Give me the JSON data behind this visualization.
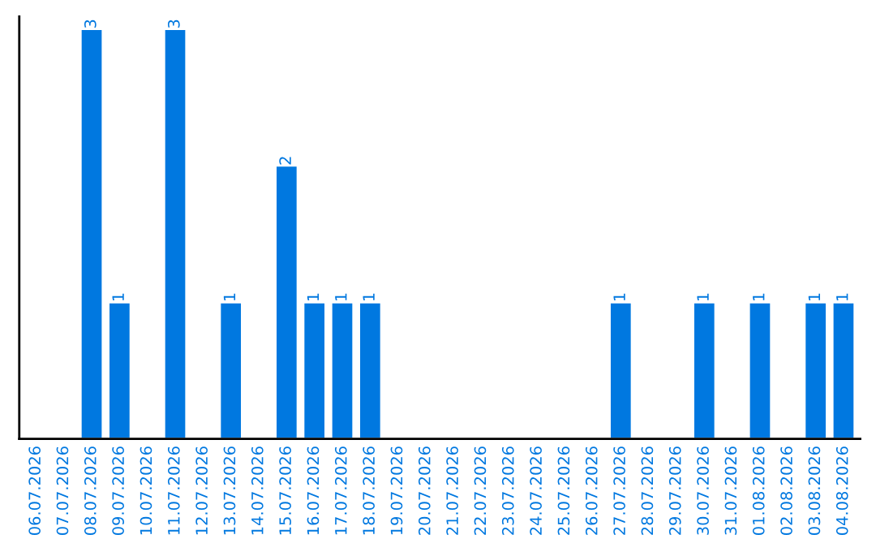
{
  "chart_data": {
    "type": "bar",
    "categories": [
      "06.07.2026",
      "07.07.2026",
      "08.07.2026",
      "09.07.2026",
      "10.07.2026",
      "11.07.2026",
      "12.07.2026",
      "13.07.2026",
      "14.07.2026",
      "15.07.2026",
      "16.07.2026",
      "17.07.2026",
      "18.07.2026",
      "19.07.2026",
      "20.07.2026",
      "21.07.2026",
      "22.07.2026",
      "23.07.2026",
      "24.07.2026",
      "25.07.2026",
      "26.07.2026",
      "27.07.2026",
      "28.07.2026",
      "29.07.2026",
      "30.07.2026",
      "31.07.2026",
      "01.08.2026",
      "02.08.2026",
      "03.08.2026",
      "04.08.2026"
    ],
    "values": [
      null,
      null,
      3,
      1,
      null,
      3,
      null,
      1,
      null,
      2,
      1,
      1,
      1,
      null,
      null,
      null,
      null,
      null,
      null,
      null,
      null,
      1,
      null,
      null,
      1,
      null,
      1,
      null,
      1,
      1
    ],
    "color": "#0078e0",
    "data_labels": true,
    "tick_labels": "x",
    "grid": false,
    "legend": false
  }
}
